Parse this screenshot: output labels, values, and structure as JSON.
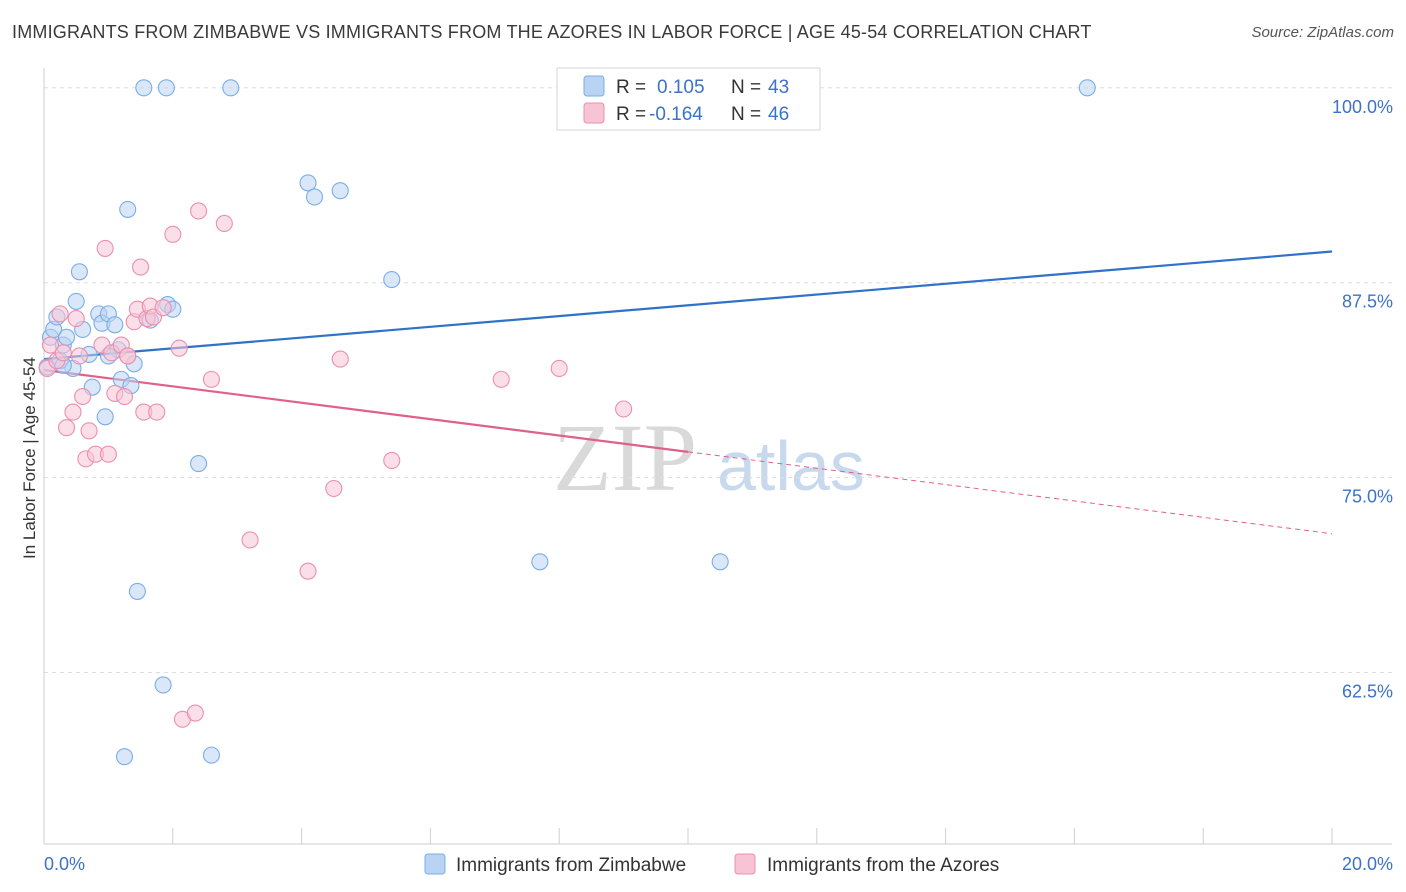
{
  "chart_data": {
    "type": "scatter",
    "title": "IMMIGRANTS FROM ZIMBABWE VS IMMIGRANTS FROM THE AZORES IN LABOR FORCE | AGE 45-54 CORRELATION CHART",
    "source": "Source: ZipAtlas.com",
    "xlabel": "",
    "ylabel": "In Labor Force | Age 45-54",
    "xlim": [
      0,
      20
    ],
    "ylim": [
      51.5,
      100.5
    ],
    "x_tick_labels": [
      "0.0%",
      "20.0%"
    ],
    "y_ticks": [
      62.5,
      75.0,
      87.5,
      100.0
    ],
    "y_tick_labels": [
      "62.5%",
      "75.0%",
      "87.5%",
      "100.0%"
    ],
    "watermark": {
      "zip": "ZIP",
      "atlas": "atlas"
    },
    "legend": {
      "r_label": "R =",
      "n_label": "N =",
      "entries": [
        {
          "r": "0.105",
          "n": "43"
        },
        {
          "r": "-0.164",
          "n": "46"
        }
      ]
    },
    "series": [
      {
        "name": "Immigrants from Zimbabwe",
        "color": "#7aaee8",
        "fill": "#b9d3f3",
        "trend": {
          "x": [
            0,
            20
          ],
          "y": [
            82.6,
            89.5
          ],
          "dashed_from": null
        },
        "points": [
          [
            0.05,
            82.1
          ],
          [
            0.1,
            84.0
          ],
          [
            0.15,
            84.5
          ],
          [
            0.2,
            85.3
          ],
          [
            0.25,
            82.5
          ],
          [
            0.3,
            83.5
          ],
          [
            0.35,
            84.0
          ],
          [
            0.45,
            82.0
          ],
          [
            0.5,
            86.3
          ],
          [
            0.55,
            88.2
          ],
          [
            0.7,
            82.9
          ],
          [
            0.75,
            80.8
          ],
          [
            0.85,
            85.5
          ],
          [
            0.9,
            84.9
          ],
          [
            0.95,
            78.9
          ],
          [
            1.0,
            85.5
          ],
          [
            1.1,
            84.8
          ],
          [
            1.15,
            83.2
          ],
          [
            1.2,
            81.3
          ],
          [
            1.25,
            57.1
          ],
          [
            1.3,
            92.2
          ],
          [
            1.35,
            80.9
          ],
          [
            1.4,
            82.3
          ],
          [
            1.45,
            67.7
          ],
          [
            1.55,
            100.0
          ],
          [
            1.65,
            85.1
          ],
          [
            1.85,
            61.7
          ],
          [
            1.9,
            100.0
          ],
          [
            1.92,
            86.1
          ],
          [
            2.0,
            85.8
          ],
          [
            2.4,
            75.9
          ],
          [
            2.6,
            57.2
          ],
          [
            2.9,
            100.0
          ],
          [
            4.1,
            93.9
          ],
          [
            4.2,
            93.0
          ],
          [
            4.6,
            93.4
          ],
          [
            5.4,
            87.7
          ],
          [
            7.7,
            69.6
          ],
          [
            10.5,
            69.6
          ],
          [
            16.2,
            100.0
          ],
          [
            0.6,
            84.5
          ],
          [
            0.3,
            82.2
          ],
          [
            1.0,
            82.8
          ]
        ]
      },
      {
        "name": "Immigrants from the Azores",
        "color": "#ec8fae",
        "fill": "#f7c4d5",
        "trend": {
          "x": [
            0,
            20
          ],
          "y": [
            81.9,
            71.4
          ],
          "dashed_from": 10.0
        },
        "points": [
          [
            0.05,
            82.0
          ],
          [
            0.1,
            83.5
          ],
          [
            0.2,
            82.5
          ],
          [
            0.25,
            85.5
          ],
          [
            0.3,
            83.0
          ],
          [
            0.35,
            78.2
          ],
          [
            0.45,
            79.2
          ],
          [
            0.5,
            85.2
          ],
          [
            0.55,
            82.8
          ],
          [
            0.6,
            80.2
          ],
          [
            0.65,
            76.2
          ],
          [
            0.7,
            78.0
          ],
          [
            0.8,
            76.5
          ],
          [
            0.9,
            83.5
          ],
          [
            0.95,
            89.7
          ],
          [
            1.0,
            76.5
          ],
          [
            1.05,
            83.0
          ],
          [
            1.1,
            80.4
          ],
          [
            1.2,
            83.5
          ],
          [
            1.25,
            80.2
          ],
          [
            1.3,
            82.8
          ],
          [
            1.4,
            85.0
          ],
          [
            1.45,
            85.8
          ],
          [
            1.5,
            88.5
          ],
          [
            1.55,
            79.2
          ],
          [
            1.6,
            85.2
          ],
          [
            1.65,
            86.0
          ],
          [
            1.7,
            85.3
          ],
          [
            1.75,
            79.2
          ],
          [
            1.85,
            85.9
          ],
          [
            2.0,
            90.6
          ],
          [
            2.1,
            83.3
          ],
          [
            2.15,
            59.5
          ],
          [
            2.35,
            59.9
          ],
          [
            2.4,
            92.1
          ],
          [
            2.6,
            81.3
          ],
          [
            2.8,
            91.3
          ],
          [
            3.2,
            71.0
          ],
          [
            4.1,
            69.0
          ],
          [
            4.5,
            74.3
          ],
          [
            4.6,
            82.6
          ],
          [
            5.4,
            76.1
          ],
          [
            7.1,
            81.3
          ],
          [
            8.0,
            82.0
          ],
          [
            9.0,
            79.4
          ],
          [
            1.3,
            82.8
          ]
        ]
      }
    ]
  }
}
